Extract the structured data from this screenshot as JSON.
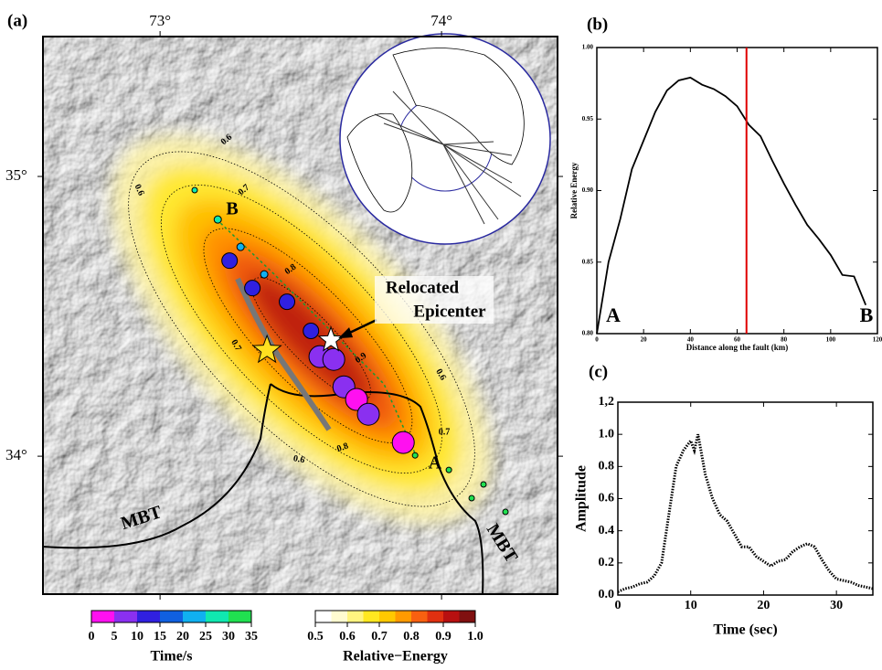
{
  "chart_data": [
    {
      "type": "line",
      "panel_label": "(b)",
      "x": [
        0,
        5,
        10,
        15,
        20,
        25,
        30,
        35,
        40,
        45,
        50,
        55,
        60,
        65,
        70,
        75,
        80,
        85,
        90,
        95,
        100,
        105,
        110,
        115
      ],
      "series": [
        {
          "color": "#000000",
          "values": [
            0.8,
            0.85,
            0.88,
            0.915,
            0.935,
            0.955,
            0.97,
            0.977,
            0.979,
            0.974,
            0.971,
            0.966,
            0.959,
            0.946,
            0.938,
            0.921,
            0.905,
            0.89,
            0.876,
            0.866,
            0.855,
            0.841,
            0.84,
            0.82
          ]
        }
      ],
      "xlim": [
        0,
        120
      ],
      "ylim": [
        0.8,
        1.0
      ],
      "xticks": [
        0,
        20,
        40,
        60,
        80,
        100,
        120
      ],
      "yticks": [
        {
          "value": 0.8,
          "label": "0.80"
        },
        {
          "value": 0.85,
          "label": "0.85"
        },
        {
          "value": 0.9,
          "label": "0.90"
        },
        {
          "value": 0.95,
          "label": "0.95"
        },
        {
          "value": 1.0,
          "label": "1.00"
        }
      ],
      "xlabel": "Distance along the fault (km)",
      "ylabel": "Relative Energy",
      "annotations": [
        "A",
        "B"
      ],
      "vline": 64,
      "vline_color": "#e00000",
      "linestyle": "solid"
    },
    {
      "type": "line",
      "panel_label": "(c)",
      "x": [
        0,
        1,
        2,
        3,
        4,
        5,
        6,
        7,
        8,
        9,
        10,
        10.5,
        11,
        12,
        13,
        14,
        15,
        16,
        17,
        18,
        19,
        20,
        21,
        22,
        23,
        24,
        25,
        26,
        27,
        28,
        29,
        30,
        31,
        32,
        33,
        34,
        35
      ],
      "series": [
        {
          "color": "#000000",
          "values": [
            0.02,
            0.04,
            0.05,
            0.07,
            0.08,
            0.12,
            0.2,
            0.5,
            0.8,
            0.9,
            0.96,
            0.9,
            1.0,
            0.75,
            0.6,
            0.5,
            0.46,
            0.38,
            0.3,
            0.3,
            0.24,
            0.21,
            0.18,
            0.21,
            0.22,
            0.27,
            0.3,
            0.32,
            0.3,
            0.22,
            0.15,
            0.1,
            0.09,
            0.08,
            0.06,
            0.05,
            0.04
          ]
        }
      ],
      "xlim": [
        0,
        35
      ],
      "ylim": [
        0,
        1.2
      ],
      "xticks": [
        0,
        10,
        20,
        30
      ],
      "yticks": [
        {
          "value": 0,
          "label": "0.0"
        },
        {
          "value": 0.2,
          "label": "0.2"
        },
        {
          "value": 0.4,
          "label": "0.4"
        },
        {
          "value": 0.6,
          "label": "0.6"
        },
        {
          "value": 0.8,
          "label": "0.8"
        },
        {
          "value": 1.0,
          "label": "1.0"
        },
        {
          "value": 1.2,
          "label": "1,2"
        }
      ],
      "xlabel": "Time (sec)",
      "ylabel": "Amplitude",
      "linestyle": "dotted"
    }
  ],
  "map": {
    "panel_label": "(a)",
    "xlim": [
      72.584,
      74.412
    ],
    "ylim": [
      33.507,
      35.5
    ],
    "xticks": [
      {
        "value": 73,
        "label": "73°"
      },
      {
        "value": 74,
        "label": "74°"
      }
    ],
    "yticks": [
      {
        "value": 35,
        "label": "35°"
      },
      {
        "value": 34,
        "label": "34°"
      }
    ],
    "events": [
      {
        "lon": 73.123,
        "lat": 34.951,
        "time": 27
      },
      {
        "lon": 73.205,
        "lat": 34.846,
        "time": 25
      },
      {
        "lon": 73.247,
        "lat": 34.699,
        "time": 13
      },
      {
        "lon": 73.286,
        "lat": 34.748,
        "time": 22
      },
      {
        "lon": 73.328,
        "lat": 34.601,
        "time": 12
      },
      {
        "lon": 73.37,
        "lat": 34.65,
        "time": 20
      },
      {
        "lon": 73.451,
        "lat": 34.552,
        "time": 13
      },
      {
        "lon": 73.536,
        "lat": 34.448,
        "time": 12
      },
      {
        "lon": 73.568,
        "lat": 34.356,
        "time": 8
      },
      {
        "lon": 73.617,
        "lat": 34.346,
        "time": 7
      },
      {
        "lon": 73.653,
        "lat": 34.248,
        "time": 7
      },
      {
        "lon": 73.698,
        "lat": 34.203,
        "time": 4
      },
      {
        "lon": 73.74,
        "lat": 34.15,
        "time": 7
      },
      {
        "lon": 73.864,
        "lat": 34.049,
        "time": 2
      },
      {
        "lon": 73.906,
        "lat": 34.003,
        "time": 30
      },
      {
        "lon": 74.026,
        "lat": 33.951,
        "time": 32
      },
      {
        "lon": 74.149,
        "lat": 33.899,
        "time": 32
      },
      {
        "lon": 74.107,
        "lat": 33.85,
        "time": 32
      },
      {
        "lon": 74.227,
        "lat": 33.801,
        "time": 33
      }
    ],
    "epicenter": {
      "lon": 73.38,
      "lat": 34.379,
      "color": "#ffe020"
    },
    "relocated_epicenter": {
      "lon": 73.607,
      "lat": 34.415,
      "color": "#ffffff"
    },
    "annotation": [
      "Relocated",
      "Epicenter"
    ],
    "point_labels": [
      "B",
      "A"
    ],
    "fault_labels": [
      "MBT",
      "MBT"
    ],
    "contour_labels": [
      0.6,
      0.7,
      0.6,
      0.8,
      0.7,
      0.9,
      0.6,
      0.7,
      0.8,
      0.6
    ],
    "time_scale": {
      "label": "Time/s",
      "ticks": [
        0,
        5,
        10,
        15,
        20,
        25,
        30,
        35
      ],
      "colors": [
        "#ff10f0",
        "#8a30f0",
        "#3020e0",
        "#1060e0",
        "#10b0f0",
        "#10e8b0",
        "#20e050"
      ]
    },
    "energy_scale": {
      "label": "Relative−Energy",
      "ticks": [
        0.5,
        0.6,
        0.7,
        0.8,
        0.9,
        {
          "value": 1.0,
          "label": "1.0"
        }
      ],
      "colors": [
        "#ffffff",
        "#fffbd0",
        "#fff480",
        "#ffe820",
        "#ffc800",
        "#ff9a00",
        "#f86010",
        "#e03010",
        "#b81010",
        "#801010"
      ]
    }
  }
}
